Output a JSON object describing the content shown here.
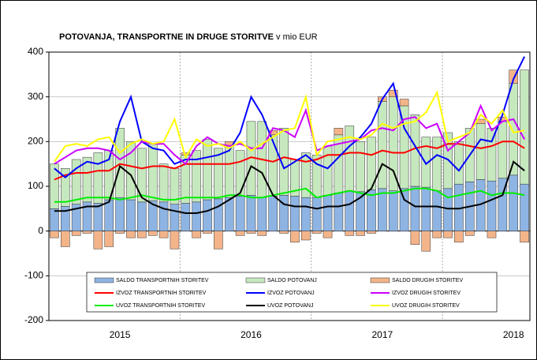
{
  "chart_data": {
    "type": "bar",
    "title": "POTOVANJA, TRANSPORTNE IN DRUGE STORITVE",
    "subtitle": "v mio EUR",
    "categories": [
      null,
      null,
      null,
      null,
      null,
      null,
      "2015",
      null,
      null,
      null,
      null,
      null,
      null,
      null,
      null,
      null,
      null,
      null,
      "2016",
      null,
      null,
      null,
      null,
      null,
      null,
      null,
      null,
      null,
      null,
      null,
      "2017",
      null,
      null,
      null,
      null,
      null,
      null,
      null,
      null,
      null,
      null,
      null,
      "2018",
      null
    ],
    "ylim": [
      -200,
      400
    ],
    "yticks": [
      -200,
      -100,
      0,
      100,
      200,
      300,
      400
    ],
    "grid": true,
    "series": [
      {
        "name": "SALDO TRANSPORTNIH STORITEV",
        "type": "bar",
        "color": "#8eb4e3",
        "values": [
          50,
          55,
          60,
          65,
          62,
          70,
          75,
          70,
          65,
          68,
          65,
          60,
          62,
          65,
          70,
          72,
          75,
          78,
          80,
          75,
          78,
          80,
          78,
          75,
          75,
          80,
          85,
          90,
          88,
          92,
          95,
          90,
          95,
          100,
          98,
          90,
          95,
          105,
          110,
          115,
          112,
          118,
          125,
          105
        ]
      },
      {
        "name": "SALDO POTOVANJ",
        "type": "bar",
        "color": "#c6e8be",
        "values": [
          100,
          85,
          100,
          100,
          113,
          110,
          155,
          130,
          120,
          127,
          85,
          80,
          108,
          115,
          135,
          113,
          115,
          102,
          165,
          170,
          137,
          150,
          82,
          100,
          95,
          110,
          130,
          145,
          112,
          118,
          195,
          210,
          185,
          160,
          112,
          120,
          125,
          95,
          120,
          125,
          118,
          127,
          205,
          255
        ]
      },
      {
        "name": "SALDO DRUGIH STORITEV",
        "type": "bar",
        "color": "#f4b48a",
        "values": [
          -15,
          -35,
          -10,
          -5,
          -40,
          -35,
          -5,
          -15,
          -15,
          -10,
          -15,
          -40,
          5,
          -15,
          -5,
          -40,
          10,
          -10,
          -5,
          -10,
          10,
          -5,
          -25,
          -20,
          -5,
          -15,
          15,
          -10,
          -10,
          -5,
          10,
          15,
          15,
          -30,
          -45,
          -15,
          -15,
          -25,
          -10,
          10,
          -15,
          10,
          30,
          -25
        ]
      },
      {
        "name": "IZVOZ TRANSPORTNIH STORITEV",
        "type": "line",
        "color": "#ff0000",
        "values": [
          115,
          125,
          130,
          130,
          135,
          135,
          150,
          145,
          140,
          145,
          145,
          140,
          150,
          150,
          150,
          150,
          150,
          155,
          165,
          160,
          155,
          165,
          160,
          155,
          160,
          170,
          170,
          175,
          175,
          170,
          180,
          175,
          175,
          185,
          190,
          185,
          195,
          195,
          190,
          185,
          190,
          200,
          200,
          185
        ]
      },
      {
        "name": "IZVOZ POTOVANJ",
        "type": "line",
        "color": "#0000ff",
        "values": [
          140,
          120,
          140,
          155,
          150,
          160,
          245,
          300,
          200,
          185,
          180,
          150,
          160,
          160,
          165,
          170,
          180,
          220,
          300,
          260,
          200,
          140,
          155,
          170,
          150,
          140,
          165,
          190,
          210,
          240,
          295,
          330,
          230,
          190,
          150,
          170,
          160,
          135,
          170,
          205,
          200,
          260,
          340,
          390
        ]
      },
      {
        "name": "IZVOZ DRUGIH STORITEV",
        "type": "line",
        "color": "#cc00ff",
        "values": [
          150,
          165,
          180,
          185,
          185,
          180,
          160,
          175,
          200,
          195,
          195,
          170,
          150,
          190,
          210,
          195,
          190,
          195,
          185,
          185,
          230,
          225,
          210,
          270,
          180,
          190,
          195,
          200,
          205,
          225,
          230,
          225,
          250,
          255,
          230,
          240,
          180,
          200,
          220,
          280,
          225,
          245,
          250,
          205
        ]
      },
      {
        "name": "UVOZ TRANSPORTNIH STORITEV",
        "type": "line",
        "color": "#00ee00",
        "values": [
          65,
          65,
          70,
          75,
          75,
          75,
          70,
          75,
          80,
          75,
          70,
          70,
          75,
          75,
          75,
          75,
          80,
          80,
          75,
          75,
          80,
          85,
          90,
          95,
          75,
          80,
          85,
          90,
          85,
          80,
          85,
          85,
          90,
          95,
          95,
          90,
          75,
          80,
          85,
          90,
          80,
          85,
          85,
          80
        ]
      },
      {
        "name": "UVOZ POTOVANJ",
        "type": "line",
        "color": "#000000",
        "values": [
          45,
          45,
          50,
          55,
          55,
          65,
          145,
          125,
          75,
          60,
          50,
          45,
          40,
          40,
          45,
          55,
          70,
          85,
          145,
          130,
          80,
          60,
          55,
          55,
          50,
          55,
          55,
          60,
          75,
          95,
          150,
          135,
          70,
          55,
          55,
          55,
          50,
          50,
          55,
          60,
          70,
          80,
          155,
          135
        ]
      },
      {
        "name": "UVOZ DRUGIH STORITEV",
        "type": "line",
        "color": "#ffff00",
        "values": [
          155,
          190,
          195,
          190,
          205,
          210,
          175,
          195,
          205,
          195,
          200,
          250,
          165,
          205,
          190,
          195,
          185,
          200,
          180,
          195,
          210,
          225,
          230,
          300,
          170,
          200,
          205,
          210,
          205,
          215,
          240,
          230,
          240,
          245,
          265,
          310,
          200,
          210,
          220,
          260,
          240,
          270,
          220,
          225
        ]
      }
    ]
  }
}
